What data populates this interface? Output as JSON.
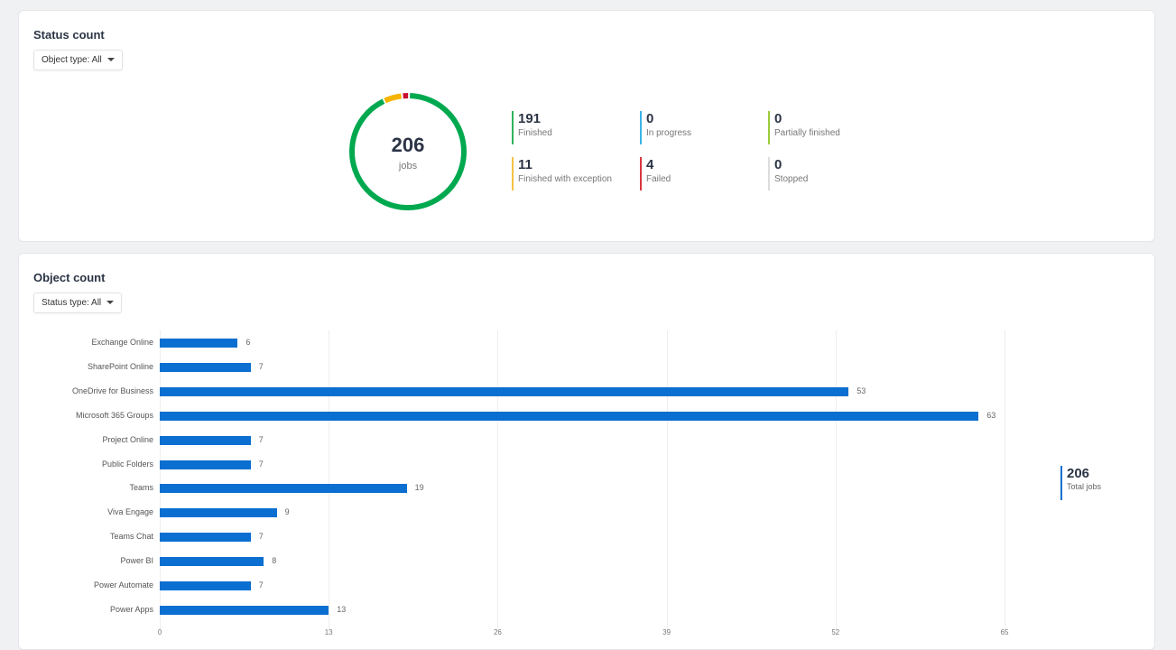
{
  "status_card": {
    "title": "Status count",
    "filter": "Object type: All",
    "total": "206",
    "total_label": "jobs",
    "stats": [
      {
        "value": "191",
        "label": "Finished",
        "color": "#2fb35b"
      },
      {
        "value": "0",
        "label": "In progress",
        "color": "#3ab4ea"
      },
      {
        "value": "0",
        "label": "Partially finished",
        "color": "#9ccc3c"
      },
      {
        "value": "11",
        "label": "Finished with exception",
        "color": "#f5c242"
      },
      {
        "value": "4",
        "label": "Failed",
        "color": "#d9363e"
      },
      {
        "value": "0",
        "label": "Stopped",
        "color": "#dddddd"
      }
    ],
    "donut_colors": {
      "Finished": "#00a94f",
      "Finished with exception": "#f5b400",
      "Failed": "#c8102e"
    }
  },
  "object_card": {
    "title": "Object count",
    "filter": "Status type: All",
    "total": "206",
    "total_label": "Total jobs"
  },
  "chart_data": {
    "type": "bar",
    "orientation": "horizontal",
    "categories": [
      "Exchange Online",
      "SharePoint Online",
      "OneDrive for Business",
      "Microsoft 365 Groups",
      "Project Online",
      "Public Folders",
      "Teams",
      "Viva Engage",
      "Teams Chat",
      "Power BI",
      "Power Automate",
      "Power Apps"
    ],
    "values": [
      6,
      7,
      53,
      63,
      7,
      7,
      19,
      9,
      7,
      8,
      7,
      13
    ],
    "xlim": [
      0,
      65
    ],
    "xticks": [
      "0",
      "13",
      "26",
      "39",
      "52",
      "65"
    ],
    "grid": true,
    "color": "#0a6fd0"
  }
}
